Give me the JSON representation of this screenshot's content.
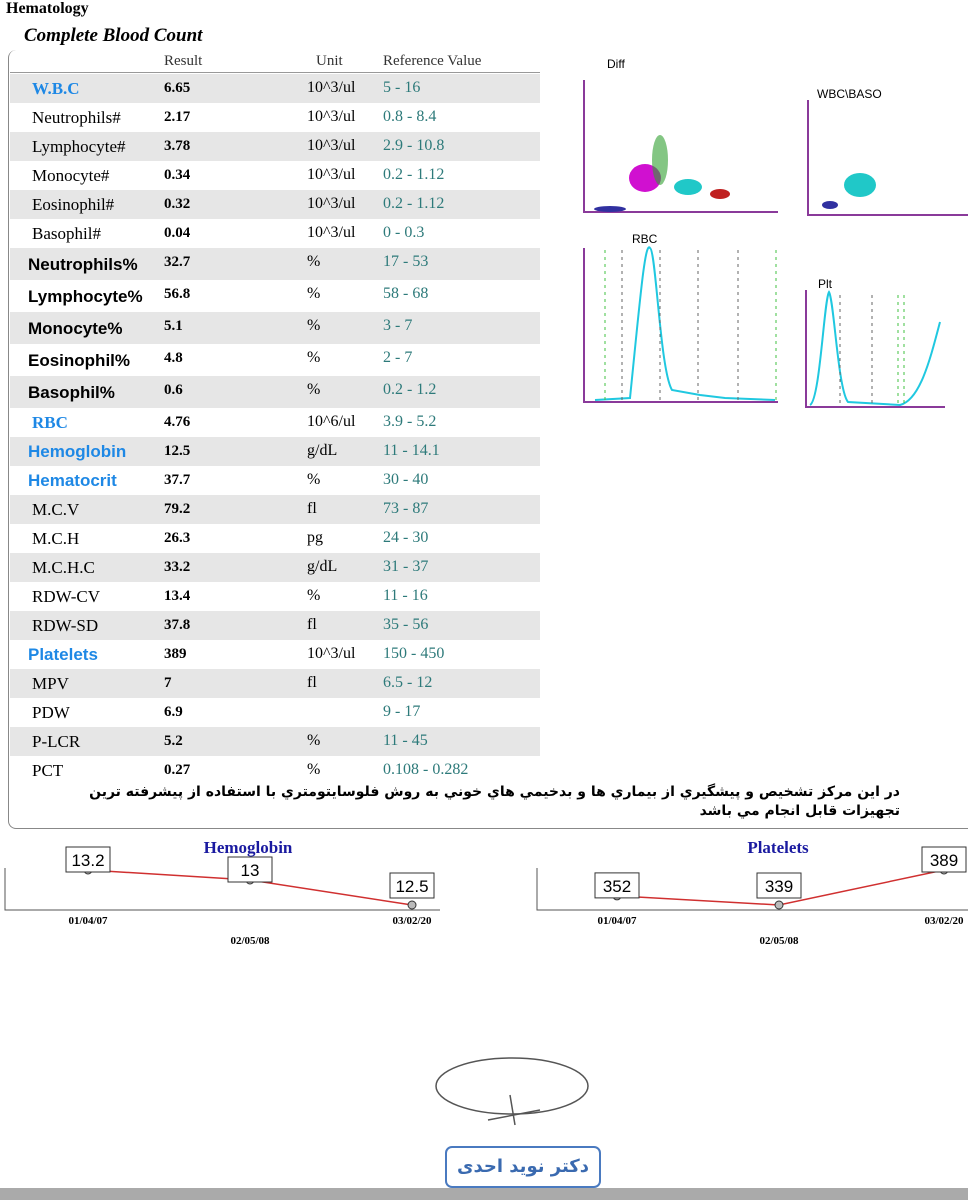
{
  "header": {
    "section": "Hematology",
    "title": "Complete Blood Count"
  },
  "table": {
    "columns": [
      "Result",
      "Unit",
      "Reference Value"
    ],
    "rows": [
      {
        "name": "W.B.C",
        "result": "6.65",
        "unit": "10^3/ul",
        "reference": "5 - 16",
        "color": "#1e88e5"
      },
      {
        "name": "Neutrophils#",
        "result": "2.17",
        "unit": "10^3/ul",
        "reference": "0.8 - 8.4"
      },
      {
        "name": "Lymphocyte#",
        "result": "3.78",
        "unit": "10^3/ul",
        "reference": "2.9 - 10.8"
      },
      {
        "name": "Monocyte#",
        "result": "0.34",
        "unit": "10^3/ul",
        "reference": "0.2 - 1.12"
      },
      {
        "name": "Eosinophil#",
        "result": "0.32",
        "unit": "10^3/ul",
        "reference": "0.2 - 1.12"
      },
      {
        "name": "Basophil#",
        "result": "0.04",
        "unit": "10^3/ul",
        "reference": "0 - 0.3"
      },
      {
        "name": "Neutrophils%",
        "result": "32.7",
        "unit": "%",
        "reference": "17 - 53"
      },
      {
        "name": "Lymphocyte%",
        "result": "56.8",
        "unit": "%",
        "reference": "58 - 68"
      },
      {
        "name": "Monocyte%",
        "result": "5.1",
        "unit": "%",
        "reference": "3 - 7"
      },
      {
        "name": "Eosinophil%",
        "result": "4.8",
        "unit": "%",
        "reference": "2 - 7"
      },
      {
        "name": "Basophil%",
        "result": "0.6",
        "unit": "%",
        "reference": "0.2 - 1.2"
      },
      {
        "name": "RBC",
        "result": "4.76",
        "unit": "10^6/ul",
        "reference": "3.9 - 5.2",
        "color": "#1e88e5"
      },
      {
        "name": "Hemoglobin",
        "result": "12.5",
        "unit": "g/dL",
        "reference": "11 - 14.1",
        "color": "#1e88e5"
      },
      {
        "name": "Hematocrit",
        "result": "37.7",
        "unit": "%",
        "reference": "30 - 40",
        "color": "#1e88e5"
      },
      {
        "name": "M.C.V",
        "result": "79.2",
        "unit": "fl",
        "reference": "73 - 87"
      },
      {
        "name": "M.C.H",
        "result": "26.3",
        "unit": "pg",
        "reference": "24 - 30"
      },
      {
        "name": "M.C.H.C",
        "result": "33.2",
        "unit": "g/dL",
        "reference": "31 - 37"
      },
      {
        "name": "RDW-CV",
        "result": "13.4",
        "unit": "%",
        "reference": "11 - 16"
      },
      {
        "name": "RDW-SD",
        "result": "37.8",
        "unit": "fl",
        "reference": "35 - 56"
      },
      {
        "name": "Platelets",
        "result": "389",
        "unit": "10^3/ul",
        "reference": "150 - 450",
        "color": "#1e88e5"
      },
      {
        "name": "MPV",
        "result": "7",
        "unit": "fl",
        "reference": "6.5 - 12"
      },
      {
        "name": "PDW",
        "result": "6.9",
        "unit": "",
        "reference": "9 - 17"
      },
      {
        "name": "P-LCR",
        "result": "5.2",
        "unit": "%",
        "reference": "11 - 45"
      },
      {
        "name": "PCT",
        "result": "0.27",
        "unit": "%",
        "reference": "0.108 - 0.282"
      }
    ]
  },
  "plots": [
    "Diff",
    "WBC\\BASO",
    "RBC",
    "Plt"
  ],
  "note": "در اين مركز تشخيص  و پيشگيري از بيماري ها و بدخيمي هاي خوني به روش فلوسايتومتري با استفاده از پيشرفته ترين تجهيزات قابل انجام مي باشد",
  "trends": [
    {
      "type": "line",
      "title": "Hemoglobin",
      "categories": [
        "01/04/07",
        "02/05/08",
        "03/02/20"
      ],
      "values": [
        13.2,
        13,
        12.5
      ],
      "color": "#d03030"
    },
    {
      "type": "line",
      "title": "Platelets",
      "categories": [
        "01/04/07",
        "02/05/08",
        "03/02/20"
      ],
      "values": [
        352,
        339,
        389
      ],
      "color": "#d03030"
    }
  ],
  "stamp": "دکتر نوید احدی"
}
